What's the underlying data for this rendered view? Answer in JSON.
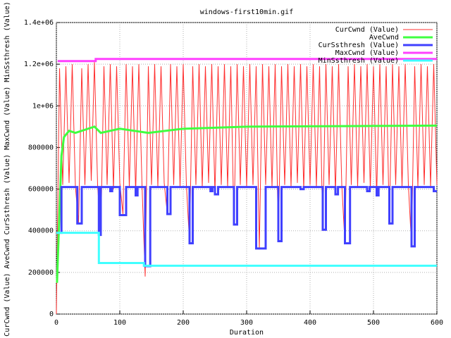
{
  "chart_data": {
    "type": "line",
    "title": "windows-first10min.gif",
    "xlabel": "Duration",
    "ylabel": "CurCwnd (Value) AveCwnd CurSsthresh (Value) MaxCwnd (Value) MinSsthresh (Value)",
    "xlim": [
      0,
      600
    ],
    "xticks": [
      0,
      100,
      200,
      300,
      400,
      500,
      600
    ],
    "ylim": [
      0,
      1400000
    ],
    "yticks": [
      0,
      200000,
      400000,
      600000,
      800000,
      {
        "value": 1000000,
        "label": "1e+06"
      },
      {
        "value": 1200000,
        "label": "1.2e+06"
      },
      {
        "value": 1400000,
        "label": "1.4e+06"
      }
    ],
    "grid": true,
    "legend": "top-right",
    "series": [
      {
        "name": "CurCwnd (Value)",
        "color": "#ff3030",
        "width": 1,
        "x": [
          0,
          5,
          10,
          15,
          20,
          25,
          30,
          35,
          40,
          45,
          50,
          55,
          60,
          65,
          70,
          75,
          80,
          85,
          90,
          95,
          100,
          105,
          110,
          115,
          120,
          125,
          130,
          135,
          140,
          145,
          150,
          155,
          160,
          165,
          170,
          175,
          180,
          185,
          190,
          195,
          200,
          205,
          210,
          215,
          220,
          225,
          230,
          235,
          240,
          245,
          250,
          255,
          260,
          265,
          270,
          275,
          280,
          285,
          290,
          295,
          300,
          305,
          310,
          315,
          320,
          325,
          330,
          335,
          340,
          345,
          350,
          355,
          360,
          365,
          370,
          375,
          380,
          385,
          390,
          395,
          400,
          405,
          410,
          415,
          420,
          425,
          430,
          435,
          440,
          445,
          450,
          455,
          460,
          465,
          470,
          475,
          480,
          485,
          490,
          495,
          500,
          505,
          510,
          515,
          520,
          525,
          530,
          535,
          540,
          545,
          550,
          555,
          560,
          565,
          570,
          575,
          580,
          585,
          590,
          595,
          600
        ],
        "values": [
          0,
          1180000,
          620000,
          1190000,
          630000,
          1200000,
          610000,
          440000,
          1180000,
          620000,
          1200000,
          640000,
          1210000,
          620000,
          380000,
          1190000,
          620000,
          1200000,
          600000,
          1190000,
          630000,
          480000,
          1200000,
          610000,
          1190000,
          580000,
          1200000,
          620000,
          180000,
          1190000,
          620000,
          1200000,
          610000,
          1190000,
          630000,
          480000,
          1200000,
          620000,
          1190000,
          610000,
          1200000,
          620000,
          340000,
          1190000,
          620000,
          1200000,
          610000,
          1190000,
          630000,
          1200000,
          580000,
          1190000,
          620000,
          1200000,
          610000,
          1190000,
          430000,
          1200000,
          620000,
          1190000,
          610000,
          1200000,
          620000,
          1190000,
          310000,
          1200000,
          620000,
          1190000,
          610000,
          1200000,
          350000,
          1190000,
          620000,
          1200000,
          610000,
          1190000,
          630000,
          1200000,
          600000,
          1190000,
          620000,
          1200000,
          610000,
          1190000,
          400000,
          1200000,
          620000,
          1190000,
          580000,
          1200000,
          620000,
          340000,
          1190000,
          620000,
          1200000,
          610000,
          1190000,
          630000,
          1200000,
          600000,
          1190000,
          570000,
          1200000,
          620000,
          1190000,
          430000,
          1200000,
          620000,
          1190000,
          610000,
          1200000,
          620000,
          330000,
          1190000,
          610000,
          1200000,
          620000,
          1190000,
          610000,
          1200000,
          620000
        ]
      },
      {
        "name": "AveCwnd",
        "color": "#40ff40",
        "width": 3,
        "x": [
          1,
          8,
          12,
          20,
          30,
          60,
          70,
          100,
          145,
          200,
          300,
          600
        ],
        "values": [
          150000,
          760000,
          850000,
          880000,
          870000,
          900000,
          870000,
          890000,
          870000,
          890000,
          900000,
          905000
        ]
      },
      {
        "name": "CurSsthresh (Value)",
        "color": "#4040ff",
        "width": 3,
        "step": true,
        "x": [
          0,
          8,
          33,
          40,
          67,
          70,
          85,
          88,
          100,
          110,
          125,
          128,
          140,
          148,
          175,
          180,
          210,
          215,
          243,
          246,
          250,
          255,
          280,
          285,
          315,
          330,
          350,
          355,
          385,
          390,
          420,
          425,
          440,
          444,
          455,
          463,
          490,
          494,
          505,
          508,
          525,
          530,
          560,
          565,
          595,
          600
        ],
        "values": [
          390000,
          610000,
          435000,
          610000,
          380000,
          610000,
          590000,
          610000,
          475000,
          610000,
          570000,
          610000,
          230000,
          610000,
          480000,
          610000,
          340000,
          610000,
          590000,
          610000,
          575000,
          610000,
          430000,
          610000,
          315000,
          610000,
          350000,
          610000,
          600000,
          610000,
          405000,
          610000,
          575000,
          610000,
          340000,
          610000,
          590000,
          610000,
          570000,
          610000,
          435000,
          610000,
          325000,
          610000,
          590000,
          590000
        ]
      },
      {
        "name": "MaxCwnd (Value)",
        "color": "#ff40ff",
        "width": 3,
        "step": true,
        "x": [
          2,
          62,
          600
        ],
        "values": [
          1215000,
          1225000,
          1225000
        ]
      },
      {
        "name": "MinSsthresh (Value)",
        "color": "#40ffff",
        "width": 3,
        "step": true,
        "x": [
          0,
          67,
          138,
          600
        ],
        "values": [
          390000,
          245000,
          232000,
          232000
        ]
      }
    ]
  }
}
